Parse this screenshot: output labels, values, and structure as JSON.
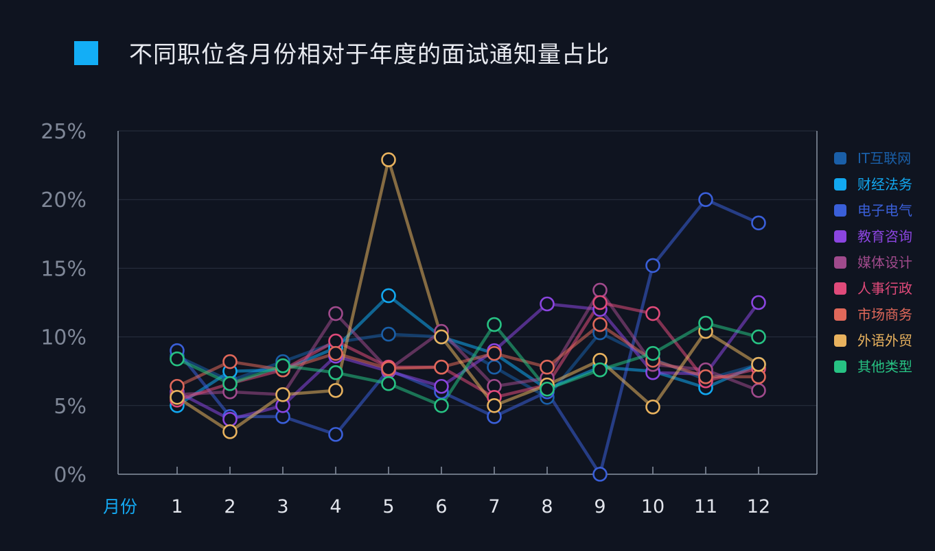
{
  "title": "不同职位各月份相对于年度的面试通知量占比",
  "colors": {
    "background": "#0f1420",
    "title_marker": "#13aef6",
    "axis": "#8a93a3",
    "grid": "#2a3140"
  },
  "chart_data": {
    "type": "line",
    "title": "不同职位各月份相对于年度的面试通知量占比",
    "xlabel": "月份",
    "ylabel": "",
    "x": [
      1,
      2,
      3,
      4,
      5,
      6,
      7,
      8,
      9,
      10,
      11,
      12
    ],
    "x_tick_labels": [
      "1",
      "2",
      "3",
      "4",
      "5",
      "6",
      "7",
      "8",
      "9",
      "10",
      "11",
      "12"
    ],
    "y_tick_labels": [
      "0%",
      "5%",
      "10%",
      "15%",
      "20%",
      "25%"
    ],
    "ylim": [
      0,
      25
    ],
    "y_unit": "%",
    "grid": true,
    "legend_position": "right",
    "series": [
      {
        "name": "IT互联网",
        "color": "#1a5fa8",
        "values": [
          8.6,
          6.8,
          8.2,
          9.6,
          10.2,
          10.0,
          7.8,
          5.6,
          10.3,
          8.4,
          6.9,
          8.0
        ]
      },
      {
        "name": "财经法务",
        "color": "#12a8f0",
        "values": [
          5.0,
          7.5,
          7.6,
          9.2,
          13.0,
          10.0,
          8.8,
          6.2,
          7.8,
          7.5,
          6.3,
          8.0
        ]
      },
      {
        "name": "电子电气",
        "color": "#3a5fd9",
        "values": [
          9.0,
          4.2,
          4.2,
          2.9,
          7.6,
          6.0,
          4.2,
          6.0,
          0.0,
          15.2,
          20.0,
          18.3
        ]
      },
      {
        "name": "教育咨询",
        "color": "#8b45e0",
        "values": [
          6.0,
          4.0,
          5.0,
          8.6,
          7.5,
          6.4,
          9.0,
          12.4,
          12.0,
          7.4,
          7.3,
          12.5
        ]
      },
      {
        "name": "媒体设计",
        "color": "#a04a8c",
        "values": [
          5.8,
          6.0,
          5.8,
          11.7,
          7.6,
          10.4,
          6.4,
          7.0,
          13.4,
          8.0,
          7.6,
          6.1
        ]
      },
      {
        "name": "人事行政",
        "color": "#e04a7a",
        "values": [
          5.4,
          6.6,
          7.6,
          9.7,
          7.8,
          7.8,
          5.6,
          6.5,
          12.5,
          11.7,
          6.8,
          7.7
        ]
      },
      {
        "name": "市场商务",
        "color": "#e0685a",
        "values": [
          6.4,
          8.2,
          7.6,
          8.8,
          7.7,
          7.8,
          8.8,
          7.8,
          10.9,
          8.3,
          7.1,
          7.1
        ]
      },
      {
        "name": "外语外贸",
        "color": "#e8b25e",
        "values": [
          5.6,
          3.1,
          5.8,
          6.1,
          22.9,
          10.0,
          5.0,
          6.5,
          8.3,
          4.9,
          10.4,
          8.0
        ]
      },
      {
        "name": "其他类型",
        "color": "#27c283",
        "values": [
          8.4,
          6.6,
          7.9,
          7.4,
          6.6,
          5.0,
          10.9,
          6.2,
          7.6,
          8.8,
          11.0,
          10.0
        ]
      }
    ]
  }
}
